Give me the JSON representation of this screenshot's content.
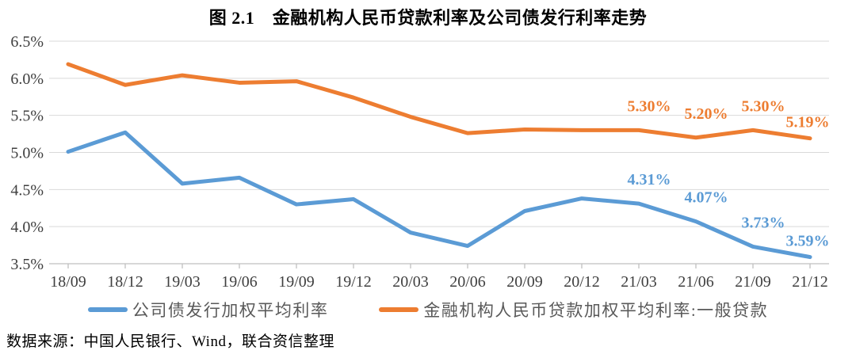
{
  "chart_data": {
    "type": "line",
    "title": "图 2.1　金融机构人民币贷款利率及公司债发行利率走势",
    "categories": [
      "18/09",
      "18/12",
      "19/03",
      "19/06",
      "19/09",
      "19/12",
      "20/03",
      "20/06",
      "20/09",
      "20/12",
      "21/03",
      "21/06",
      "21/09",
      "21/12"
    ],
    "series": [
      {
        "name": "公司债发行加权平均利率",
        "color": "#5B9BD5",
        "values": [
          5.01,
          5.27,
          4.58,
          4.66,
          4.3,
          4.37,
          3.92,
          3.74,
          4.21,
          4.38,
          4.31,
          4.07,
          3.73,
          3.59
        ],
        "point_labels": [
          null,
          null,
          null,
          null,
          null,
          null,
          null,
          null,
          null,
          null,
          "4.31%",
          "4.07%",
          "3.73%",
          "3.59%"
        ]
      },
      {
        "name": "金融机构人民币贷款加权平均利率:一般贷款",
        "color": "#ED7D31",
        "values": [
          6.19,
          5.91,
          6.04,
          5.94,
          5.96,
          5.74,
          5.48,
          5.26,
          5.31,
          5.3,
          5.3,
          5.2,
          5.3,
          5.19
        ],
        "point_labels": [
          null,
          null,
          null,
          null,
          null,
          null,
          null,
          null,
          null,
          null,
          "5.30%",
          "5.20%",
          "5.30%",
          "5.19%"
        ]
      }
    ],
    "ylim": [
      3.5,
      6.5
    ],
    "ytick_step": 0.5,
    "ytick_labels": [
      "6.5%",
      "6.0%",
      "5.5%",
      "5.0%",
      "4.5%",
      "4.0%",
      "3.5%"
    ],
    "xlabel": "",
    "ylabel": "",
    "grid": "horizontal",
    "legend_position": "bottom"
  },
  "palette": {
    "gridline": "#D9D9D9",
    "axis": "#BFBFBF",
    "axis_text": "#3F3F3F",
    "legend_text": "#595959",
    "title_text": "#000000"
  },
  "footer": {
    "source": "数据来源：中国人民银行、Wind，联合资信整理"
  }
}
